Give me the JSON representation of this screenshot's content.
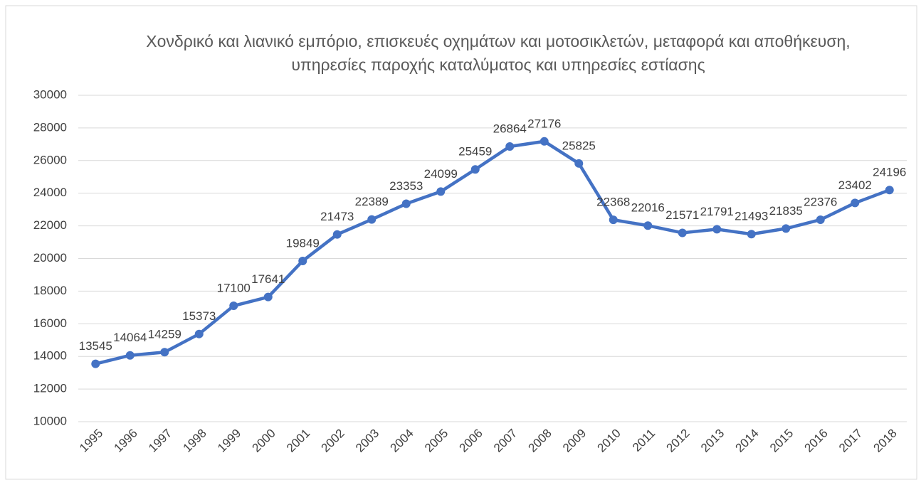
{
  "chart_data": {
    "type": "line",
    "title": "Χονδρικό και λιανικό εμπόριο, επισκευές οχημάτων και μοτοσικλετών, μεταφορά και αποθήκευση, υπηρεσίες παροχής καταλύματος και υπηρεσίες εστίασης",
    "categories": [
      "1995",
      "1996",
      "1997",
      "1998",
      "1999",
      "2000",
      "2001",
      "2002",
      "2003",
      "2004",
      "2005",
      "2006",
      "2007",
      "2008",
      "2009",
      "2010",
      "2011",
      "2012",
      "2013",
      "2014",
      "2015",
      "2016",
      "2017",
      "2018"
    ],
    "values": [
      13545,
      14064,
      14259,
      15373,
      17100,
      17641,
      19849,
      21473,
      22389,
      23353,
      24099,
      25459,
      26864,
      27176,
      25825,
      22368,
      22016,
      21571,
      21791,
      21493,
      21835,
      22376,
      23402,
      24196
    ],
    "color": "#4472c4",
    "ylim": [
      10000,
      30000
    ],
    "yticks": [
      10000,
      12000,
      14000,
      16000,
      18000,
      20000,
      22000,
      24000,
      26000,
      28000,
      30000
    ],
    "grid": true
  }
}
